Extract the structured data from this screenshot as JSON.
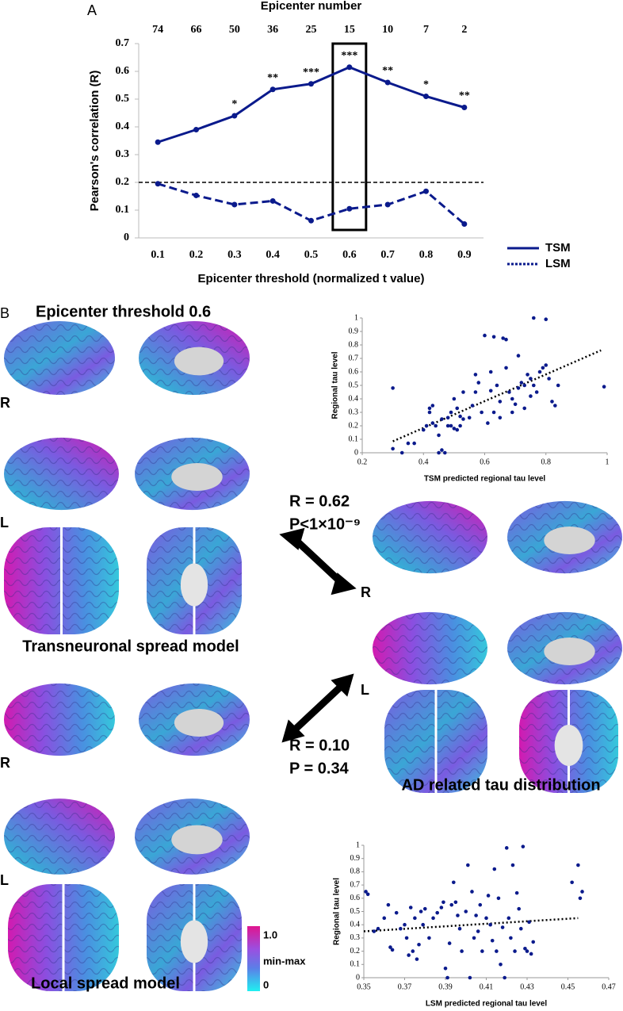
{
  "panel_a_label": "A",
  "panel_b_label": "B",
  "threshold_title": "Epicenter threshold 0.6",
  "hemisphere_labels": {
    "tsm_r": "R",
    "tsm_l": "L",
    "ad_r": "R",
    "ad_l": "L",
    "lsm_r": "R",
    "lsm_l": "L"
  },
  "tsm_stats": {
    "r": "R = 0.62",
    "p": "P<1×10⁻⁹"
  },
  "lsm_stats": {
    "r": "R = 0.10",
    "p": "P = 0.34"
  },
  "model_titles": {
    "tsm": "Transneuronal spread model",
    "ad": "AD related tau distribution",
    "lsm": "Local spread model"
  },
  "colorbar": {
    "max": "1.0",
    "mid": "min-max",
    "min": "0"
  },
  "chart_data": [
    {
      "type": "line",
      "top_axis_label": "Epicenter number",
      "top_categories": [
        74,
        66,
        50,
        36,
        25,
        15,
        10,
        7,
        2
      ],
      "x_label": "Epicenter threshold (normalized t value)",
      "y_label": "Pearson's correlation (R)",
      "categories": [
        "0.1",
        "0.2",
        "0.3",
        "0.4",
        "0.5",
        "0.6",
        "0.7",
        "0.8",
        "0.9"
      ],
      "series": [
        {
          "name": "TSM",
          "color": "#0a1a8c",
          "style": "solid",
          "values": [
            0.345,
            0.39,
            0.44,
            0.535,
            0.555,
            0.615,
            0.56,
            0.51,
            0.47
          ],
          "annotations": [
            null,
            null,
            "*",
            "**",
            "***",
            "***",
            "**",
            "*",
            "**"
          ]
        },
        {
          "name": "LSM",
          "color": "#0a1a8c",
          "style": "dashed",
          "values": [
            0.195,
            0.153,
            0.12,
            0.133,
            0.062,
            0.105,
            0.12,
            0.168,
            0.05
          ]
        }
      ],
      "reference_line": 0.2,
      "highlight_index": 5,
      "ylim": [
        0,
        0.7
      ],
      "yticks": [
        0,
        0.1,
        0.2,
        0.3,
        0.4,
        0.5,
        0.6,
        0.7
      ],
      "legend": "lower right"
    },
    {
      "type": "scatter",
      "x_label": "TSM predicted regional tau level",
      "y_label": "Regional tau level",
      "color": "#0a1a8c",
      "x": [
        0.3,
        0.3,
        0.33,
        0.35,
        0.37,
        0.4,
        0.41,
        0.42,
        0.42,
        0.43,
        0.43,
        0.44,
        0.45,
        0.45,
        0.46,
        0.46,
        0.47,
        0.48,
        0.48,
        0.49,
        0.49,
        0.5,
        0.5,
        0.51,
        0.51,
        0.52,
        0.52,
        0.53,
        0.53,
        0.55,
        0.56,
        0.57,
        0.57,
        0.58,
        0.59,
        0.6,
        0.61,
        0.62,
        0.62,
        0.63,
        0.63,
        0.64,
        0.65,
        0.65,
        0.66,
        0.67,
        0.67,
        0.68,
        0.69,
        0.69,
        0.7,
        0.71,
        0.71,
        0.72,
        0.73,
        0.73,
        0.74,
        0.75,
        0.75,
        0.76,
        0.76,
        0.77,
        0.78,
        0.79,
        0.8,
        0.8,
        0.81,
        0.82,
        0.83,
        0.84,
        0.99
      ],
      "values": [
        0.48,
        0.03,
        0.0,
        0.07,
        0.07,
        0.17,
        0.2,
        0.3,
        0.33,
        0.35,
        0.22,
        0.2,
        0.0,
        0.13,
        0.02,
        0.25,
        0.0,
        0.2,
        0.26,
        0.3,
        0.2,
        0.4,
        0.18,
        0.33,
        0.17,
        0.2,
        0.27,
        0.25,
        0.45,
        0.26,
        0.35,
        0.58,
        0.45,
        0.52,
        0.3,
        0.87,
        0.22,
        0.46,
        0.6,
        0.86,
        0.3,
        0.5,
        0.38,
        0.26,
        0.85,
        0.84,
        0.63,
        0.45,
        0.4,
        0.3,
        0.36,
        0.48,
        0.72,
        0.52,
        0.5,
        0.33,
        0.58,
        0.55,
        0.42,
        1.0,
        0.5,
        0.45,
        0.6,
        0.63,
        0.99,
        0.65,
        0.55,
        0.38,
        0.35,
        0.5,
        0.49
      ],
      "trend": {
        "x": [
          0.3,
          0.98
        ],
        "y": [
          0.085,
          0.76
        ]
      },
      "xlim": [
        0.2,
        1
      ],
      "xticks": [
        0.2,
        0.4,
        0.6,
        0.8,
        1
      ],
      "ylim": [
        0,
        1
      ],
      "yticks": [
        0,
        0.1,
        0.2,
        0.3,
        0.4,
        0.5,
        0.6,
        0.7,
        0.8,
        0.9,
        1
      ]
    },
    {
      "type": "scatter",
      "x_label": "LSM predicted regional tau level",
      "y_label": "Regional tau level",
      "color": "#0a1a8c",
      "x": [
        0.351,
        0.352,
        0.355,
        0.357,
        0.36,
        0.362,
        0.363,
        0.364,
        0.366,
        0.368,
        0.37,
        0.371,
        0.372,
        0.373,
        0.374,
        0.375,
        0.376,
        0.377,
        0.378,
        0.379,
        0.38,
        0.382,
        0.384,
        0.386,
        0.388,
        0.389,
        0.39,
        0.391,
        0.392,
        0.393,
        0.394,
        0.395,
        0.396,
        0.397,
        0.398,
        0.4,
        0.401,
        0.402,
        0.403,
        0.404,
        0.405,
        0.406,
        0.407,
        0.408,
        0.41,
        0.411,
        0.412,
        0.413,
        0.414,
        0.415,
        0.416,
        0.417,
        0.418,
        0.419,
        0.42,
        0.421,
        0.422,
        0.423,
        0.424,
        0.425,
        0.426,
        0.427,
        0.428,
        0.429,
        0.43,
        0.431,
        0.432,
        0.433,
        0.452,
        0.455,
        0.456,
        0.457
      ],
      "values": [
        0.65,
        0.63,
        0.35,
        0.37,
        0.45,
        0.55,
        0.23,
        0.21,
        0.49,
        0.37,
        0.4,
        0.3,
        0.17,
        0.53,
        0.2,
        0.45,
        0.14,
        0.25,
        0.5,
        0.4,
        0.52,
        0.3,
        0.45,
        0.49,
        0.53,
        0.57,
        0.07,
        0.0,
        0.26,
        0.55,
        0.72,
        0.57,
        0.47,
        0.37,
        0.2,
        0.5,
        0.85,
        0.0,
        0.65,
        0.3,
        0.47,
        0.35,
        0.55,
        0.2,
        0.45,
        0.62,
        0.4,
        0.28,
        0.82,
        0.2,
        0.6,
        0.1,
        0.38,
        0.0,
        0.98,
        0.45,
        0.3,
        0.85,
        0.2,
        0.64,
        0.52,
        0.37,
        0.99,
        0.22,
        0.2,
        0.42,
        0.18,
        0.27,
        0.72,
        0.85,
        0.6,
        0.65
      ],
      "trend": {
        "x": [
          0.35,
          0.455
        ],
        "y": [
          0.35,
          0.45
        ]
      },
      "xlim": [
        0.35,
        0.47
      ],
      "xticks": [
        0.35,
        0.37,
        0.39,
        0.41,
        0.43,
        0.45,
        0.47
      ],
      "ylim": [
        0,
        1
      ],
      "yticks": [
        0,
        0.1,
        0.2,
        0.3,
        0.4,
        0.5,
        0.6,
        0.7,
        0.8,
        0.9,
        1
      ]
    }
  ]
}
